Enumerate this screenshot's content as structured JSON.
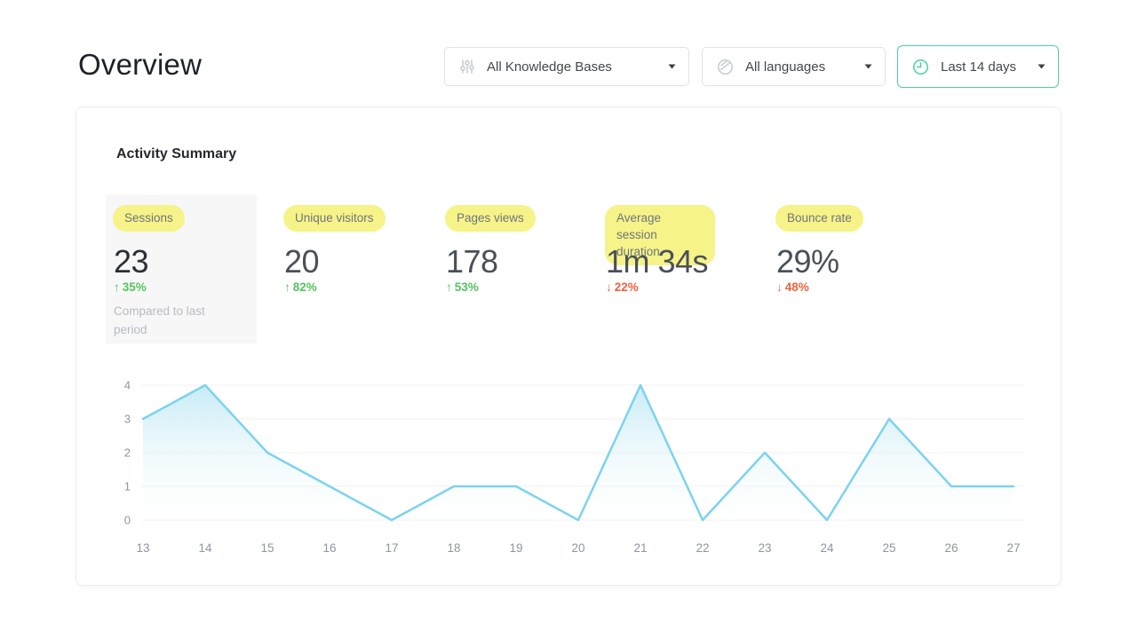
{
  "page": {
    "title": "Overview"
  },
  "toolbar": {
    "kb_filter": {
      "label": "All Knowledge Bases"
    },
    "lang_filter": {
      "label": "All languages"
    },
    "date_filter": {
      "label": "Last 14 days"
    }
  },
  "panel": {
    "title": "Activity Summary",
    "metrics": [
      {
        "label": "Sessions",
        "value": "23",
        "arrow": "↑",
        "change": "35%",
        "direction": "up",
        "note": "Compared to last period",
        "selected": true
      },
      {
        "label": "Unique visitors",
        "value": "20",
        "arrow": "↑",
        "change": "82%",
        "direction": "up"
      },
      {
        "label": "Pages views",
        "value": "178",
        "arrow": "↑",
        "change": "53%",
        "direction": "up"
      },
      {
        "label": "Average session duration",
        "value": "1m 34s",
        "arrow": "↓",
        "change": "22%",
        "direction": "down"
      },
      {
        "label": "Bounce rate",
        "value": "29%",
        "arrow": "↓",
        "change": "48%",
        "direction": "down"
      }
    ]
  },
  "chart_data": {
    "type": "area",
    "x": [
      13,
      14,
      15,
      16,
      17,
      18,
      19,
      20,
      21,
      22,
      23,
      24,
      25,
      26,
      27
    ],
    "values": [
      3,
      4,
      2,
      1,
      0,
      1,
      1,
      0,
      4,
      0,
      2,
      0,
      3,
      1,
      1
    ],
    "title": "",
    "xlabel": "",
    "ylabel": "",
    "ylim": [
      0,
      4
    ],
    "yticks": [
      0,
      1,
      2,
      3,
      4
    ],
    "grid": true,
    "legend": false,
    "line_color": "#7dd3ee",
    "fill_top_color": "#b9e6f4",
    "fill_bottom_color": "#ffffff",
    "grid_color": "#f1f1f2",
    "tick_color": "#8f969e"
  },
  "colors": {
    "accent_green": "#47d3a0",
    "positive": "#53c45e",
    "negative": "#f3613f",
    "highlight_yellow": "#f6f388"
  }
}
